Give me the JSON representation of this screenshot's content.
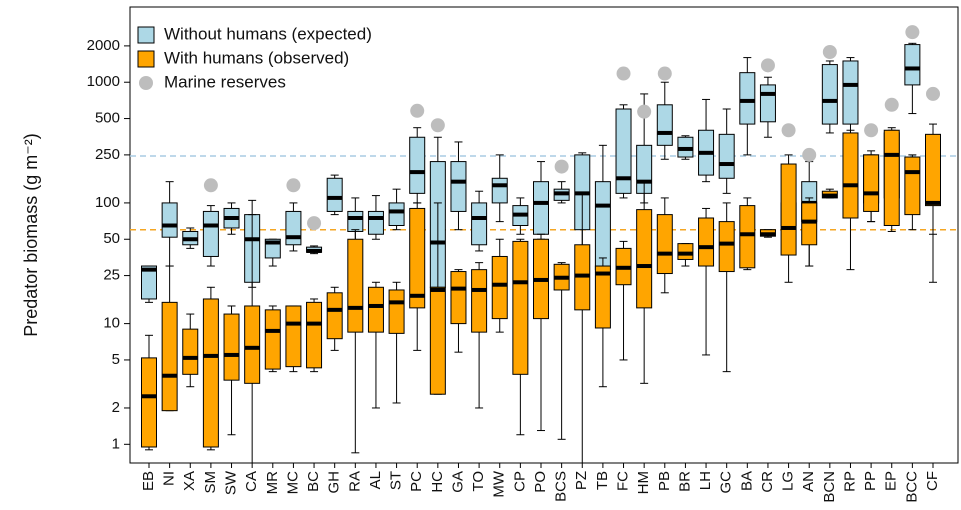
{
  "chart_data": {
    "type": "box",
    "ylabel": "Predator biomass (g m⁻²)",
    "log_scale": true,
    "ylim": [
      0.7,
      4200
    ],
    "yticks": [
      1,
      2,
      5,
      10,
      25,
      50,
      100,
      250,
      500,
      1000,
      2000
    ],
    "legend_position": "top-left",
    "categories": [
      "EB",
      "NI",
      "XA",
      "SM",
      "SW",
      "CA",
      "MR",
      "MC",
      "BC",
      "GH",
      "RA",
      "AL",
      "ST",
      "PC",
      "HC",
      "GA",
      "TO",
      "MW",
      "CP",
      "PO",
      "BCS",
      "PZ",
      "TB",
      "FC",
      "HM",
      "PB",
      "BR",
      "LH",
      "GC",
      "BA",
      "CR",
      "LG",
      "AN",
      "BCN",
      "RP",
      "PP",
      "EP",
      "BCC",
      "CF"
    ],
    "series": [
      {
        "name": "Without humans (expected)",
        "color": "#add8e6",
        "marker": "box",
        "values": [
          [
            15,
            16,
            28,
            30,
            30
          ],
          [
            30,
            52,
            65,
            100,
            150
          ],
          [
            42,
            45,
            50,
            58,
            62
          ],
          [
            30,
            36,
            65,
            85,
            95
          ],
          [
            55,
            62,
            75,
            90,
            100
          ],
          [
            20,
            22,
            50,
            80,
            105
          ],
          [
            30,
            35,
            47,
            50,
            50
          ],
          [
            40,
            45,
            52,
            85,
            100
          ],
          [
            38,
            39,
            40,
            43,
            44
          ],
          [
            80,
            85,
            110,
            160,
            170
          ],
          [
            45,
            58,
            75,
            85,
            110
          ],
          [
            50,
            55,
            75,
            85,
            115
          ],
          [
            60,
            65,
            85,
            100,
            130
          ],
          [
            100,
            120,
            180,
            350,
            420
          ],
          [
            15,
            20,
            47,
            220,
            350
          ],
          [
            60,
            85,
            150,
            220,
            320
          ],
          [
            40,
            45,
            75,
            100,
            125
          ],
          [
            70,
            100,
            140,
            160,
            250
          ],
          [
            55,
            65,
            80,
            95,
            110
          ],
          [
            50,
            55,
            100,
            150,
            220
          ],
          [
            100,
            105,
            120,
            130,
            150
          ],
          [
            40,
            60,
            120,
            250,
            260
          ],
          [
            20,
            28,
            95,
            150,
            300
          ],
          [
            110,
            120,
            160,
            600,
            650
          ],
          [
            100,
            120,
            150,
            300,
            800
          ],
          [
            230,
            300,
            380,
            650,
            1000
          ],
          [
            230,
            240,
            280,
            350,
            360
          ],
          [
            150,
            170,
            260,
            400,
            720
          ],
          [
            120,
            160,
            210,
            370,
            600
          ],
          [
            250,
            450,
            700,
            1200,
            1600
          ],
          [
            350,
            470,
            800,
            950,
            1100
          ],
          [
            60,
            65,
            70,
            100,
            150
          ],
          [
            30,
            70,
            100,
            150,
            220
          ],
          [
            380,
            450,
            700,
            1400,
            1500
          ],
          [
            300,
            450,
            950,
            1500,
            1600
          ],
          [
            70,
            100,
            170,
            250,
            270
          ],
          [
            70,
            110,
            240,
            380,
            400
          ],
          [
            550,
            950,
            1300,
            2050,
            2100
          ],
          [
            55,
            110,
            130,
            250,
            330
          ]
        ]
      },
      {
        "name": "With humans (observed)",
        "color": "#ffa500",
        "marker": "box",
        "values": [
          [
            0.9,
            0.95,
            2.5,
            5.2,
            8
          ],
          [
            1.9,
            1.9,
            3.7,
            15,
            30
          ],
          [
            3,
            3.8,
            5.2,
            9,
            12
          ],
          [
            0.9,
            0.95,
            5.4,
            16,
            20
          ],
          [
            1.2,
            3.4,
            5.5,
            12,
            14
          ],
          [
            0.7,
            3.2,
            6.3,
            14,
            80
          ],
          [
            4,
            4.2,
            8.7,
            13,
            14
          ],
          [
            4,
            4.4,
            10,
            14,
            14
          ],
          [
            4,
            4.3,
            10,
            15,
            16
          ],
          [
            6,
            7.5,
            13,
            18,
            20
          ],
          [
            0.85,
            8.5,
            13.5,
            50,
            60
          ],
          [
            2,
            8.5,
            14,
            20,
            22
          ],
          [
            2.2,
            8.3,
            15,
            19,
            22
          ],
          [
            6,
            13.5,
            17,
            90,
            100
          ],
          [
            2.6,
            2.6,
            19,
            20,
            100
          ],
          [
            5.8,
            10,
            19.5,
            27,
            28
          ],
          [
            2,
            8.5,
            19,
            28,
            32
          ],
          [
            8.5,
            11,
            21,
            36,
            50
          ],
          [
            1.2,
            3.8,
            22,
            48,
            50
          ],
          [
            1.3,
            11,
            23,
            50,
            55
          ],
          [
            1.1,
            19,
            24,
            31,
            32
          ],
          [
            0.7,
            13,
            25,
            45,
            120
          ],
          [
            3,
            9.2,
            26,
            30,
            35
          ],
          [
            5,
            21,
            29,
            42,
            48
          ],
          [
            3.2,
            13.5,
            30,
            88,
            150
          ],
          [
            18,
            26,
            38,
            80,
            110
          ],
          [
            30,
            34,
            38,
            46,
            46
          ],
          [
            5.5,
            30,
            43,
            75,
            90
          ],
          [
            4,
            27,
            46,
            70,
            100
          ],
          [
            28,
            29,
            55,
            95,
            110
          ],
          [
            52,
            53,
            55,
            60,
            60
          ],
          [
            22,
            37,
            62,
            210,
            250
          ],
          [
            30,
            45,
            70,
            100,
            110
          ],
          [
            110,
            110,
            115,
            125,
            130
          ],
          [
            28,
            75,
            140,
            380,
            400
          ],
          [
            70,
            85,
            120,
            250,
            250
          ],
          [
            58,
            65,
            250,
            400,
            420
          ],
          [
            60,
            80,
            180,
            240,
            250
          ],
          [
            22,
            95,
            100,
            370,
            450
          ]
        ]
      },
      {
        "name": "Marine reserves",
        "color": "#bdbdbd",
        "marker": "dot",
        "values": [
          null,
          null,
          null,
          140,
          null,
          null,
          null,
          140,
          68,
          null,
          null,
          null,
          null,
          580,
          440,
          null,
          null,
          null,
          null,
          null,
          200,
          null,
          null,
          1180,
          570,
          1180,
          null,
          null,
          null,
          null,
          1380,
          400,
          250,
          1780,
          null,
          400,
          650,
          2600,
          800
        ]
      }
    ],
    "reference_lines": [
      {
        "value": 245,
        "color": "#a9cce3"
      },
      {
        "value": 60,
        "color": "#f5a623"
      }
    ]
  }
}
